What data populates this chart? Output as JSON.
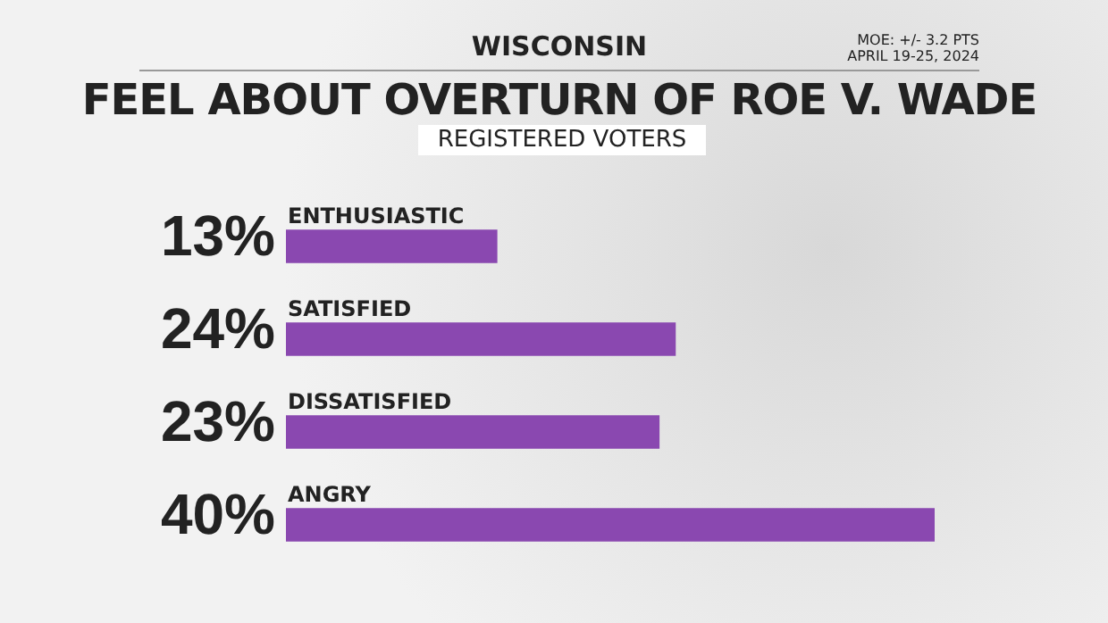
{
  "chart_data": {
    "type": "bar",
    "orientation": "horizontal",
    "title": "FEEL ABOUT OVERTURN OF ROE V. WADE",
    "subtitle": "REGISTERED VOTERS",
    "annotations": [
      "WISCONSIN",
      "MOE: +/- 3.2 PTS",
      "APRIL 19-25, 2024"
    ],
    "categories": [
      "ENTHUSIASTIC",
      "SATISFIED",
      "DISSATISFIED",
      "ANGRY"
    ],
    "values": [
      13,
      24,
      23,
      40
    ],
    "value_labels": [
      "13%",
      "24%",
      "23%",
      "40%"
    ],
    "color": "#8a48b0"
  }
}
